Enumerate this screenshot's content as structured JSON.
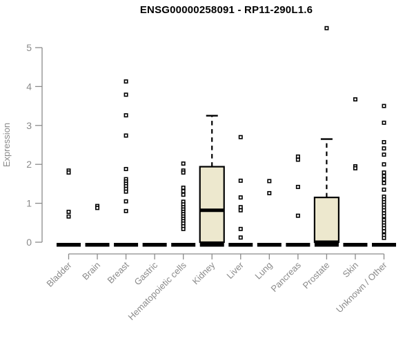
{
  "title": "ENSG00000258091 - RP11-290L1.6",
  "chart_data": {
    "type": "box",
    "title": "ENSG00000258091 - RP11-290L1.6",
    "xlabel": "",
    "ylabel": "Expression",
    "ylim": [
      0,
      5.6
    ],
    "yticks": [
      0,
      1,
      2,
      3,
      4,
      5
    ],
    "grid": false,
    "legend": false,
    "axis_color": "#8A8A8A",
    "data_color": "#000000",
    "box_fill": "#EDE8CE",
    "categories": [
      "Bladder",
      "Brain",
      "Breast",
      "Gastric",
      "Hematopoietic cells",
      "Kidney",
      "Liver",
      "Lung",
      "Pancreas",
      "Prostate",
      "Skin",
      "Unknown / Other"
    ],
    "series": [
      {
        "category": "Bladder",
        "zero_bar": true,
        "points": [
          1.84,
          1.79,
          0.78,
          0.66
        ]
      },
      {
        "category": "Brain",
        "zero_bar": true,
        "points": [
          0.93,
          0.88
        ]
      },
      {
        "category": "Breast",
        "zero_bar": true,
        "points": [
          4.13,
          3.79,
          3.26,
          2.74,
          1.88,
          1.62,
          1.56,
          1.5,
          1.44,
          1.37,
          1.3,
          1.05,
          0.8
        ]
      },
      {
        "category": "Gastric",
        "zero_bar": true,
        "points": []
      },
      {
        "category": "Hematopoietic cells",
        "zero_bar": true,
        "points": [
          2.02,
          1.84,
          1.79,
          1.4,
          1.31,
          1.22,
          1.04,
          0.97,
          0.9,
          0.84,
          0.78,
          0.72,
          0.66,
          0.6,
          0.54,
          0.48,
          0.41,
          0.34
        ]
      },
      {
        "category": "Kidney",
        "zero_bar": true,
        "box": {
          "q1": 0,
          "median": 0.82,
          "q3": 1.94,
          "whisker_high": 3.25
        },
        "points": []
      },
      {
        "category": "Liver",
        "zero_bar": true,
        "points": [
          2.7,
          1.58,
          1.15,
          0.9,
          0.82,
          0.34,
          0.12
        ]
      },
      {
        "category": "Lung",
        "zero_bar": true,
        "points": [
          1.57,
          1.26
        ]
      },
      {
        "category": "Pancreas",
        "zero_bar": true,
        "points": [
          2.2,
          2.12,
          1.42,
          0.68
        ]
      },
      {
        "category": "Prostate",
        "zero_bar": true,
        "box": {
          "q1": 0,
          "median": 0,
          "q3": 1.15,
          "whisker_high": 2.65
        },
        "points": [
          5.5
        ]
      },
      {
        "category": "Skin",
        "zero_bar": true,
        "points": [
          3.67,
          1.95,
          1.9
        ]
      },
      {
        "category": "Unknown / Other",
        "zero_bar": true,
        "points": [
          3.5,
          3.07,
          2.57,
          2.41,
          2.25,
          2.0,
          1.79,
          1.7,
          1.61,
          1.52,
          1.35,
          1.17,
          1.1,
          1.03,
          0.96,
          0.89,
          0.82,
          0.74,
          0.67,
          0.57,
          0.5,
          0.43,
          0.36,
          0.28,
          0.18,
          0.11
        ]
      }
    ]
  }
}
